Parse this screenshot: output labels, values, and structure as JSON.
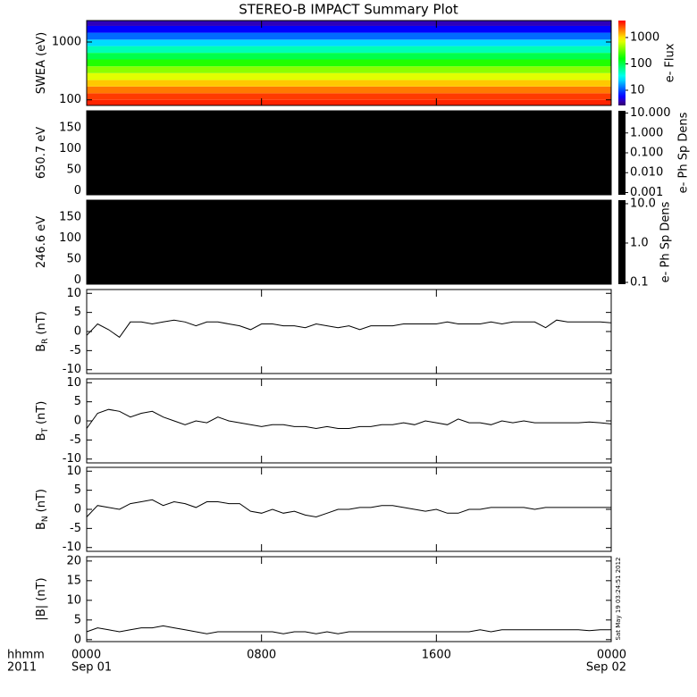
{
  "title": "STEREO-B IMPACT Summary Plot",
  "timestamp": "Sat May 19 03:24:51 2012",
  "x_axis": {
    "xlim": [
      0,
      24
    ],
    "xticks": [
      {
        "value": 0,
        "label": "0000"
      },
      {
        "value": 8,
        "label": "0800"
      },
      {
        "value": 16,
        "label": "1600"
      },
      {
        "value": 24,
        "label": "0000"
      }
    ],
    "xtick_dates": [
      "Sep 01",
      null,
      null,
      "Sep 02"
    ],
    "xlabel": [
      "hhmm",
      "2011"
    ]
  },
  "chart_data": [
    {
      "type": "spectrogram",
      "ylabel": "SWEA (eV)",
      "ylog": true,
      "ylim": [
        80,
        2350
      ],
      "yticks": [
        100,
        1000
      ],
      "ybins": [
        80,
        100,
        130,
        170,
        220,
        290,
        380,
        500,
        650,
        850,
        1100,
        1450,
        1900,
        2350
      ],
      "values": [
        3500,
        3000,
        2000,
        1200,
        700,
        400,
        200,
        100,
        50,
        25,
        12,
        6,
        4
      ],
      "clabel": "e- Flux",
      "clog": true,
      "clim": [
        2.65,
        4400
      ],
      "cticks": [
        10,
        100,
        1000
      ]
    },
    {
      "type": "pitch",
      "ylabel": "650.7 eV",
      "ylim": [
        -10,
        190
      ],
      "yticks": [
        0,
        50,
        100,
        150
      ],
      "color": "#000000",
      "clabel": "e- Ph Sp Dens",
      "clog": true,
      "clim": [
        0.00077,
        13
      ],
      "cticks": [
        {
          "value": 10,
          "label": "10.000"
        },
        {
          "value": 1,
          "label": "1.000"
        },
        {
          "value": 0.1,
          "label": "0.100"
        },
        {
          "value": 0.01,
          "label": "0.010"
        },
        {
          "value": 0.001,
          "label": "0.001"
        }
      ]
    },
    {
      "type": "pitch",
      "ylabel": "246.6 eV",
      "ylim": [
        -10,
        190
      ],
      "yticks": [
        0,
        50,
        100,
        150
      ],
      "color": "#000000",
      "clabel": "e- Ph Sp Dens",
      "clog": true,
      "clim": [
        0.09,
        12.3
      ],
      "cticks": [
        {
          "value": 10,
          "label": "10.0"
        },
        {
          "value": 1,
          "label": "1.0"
        },
        {
          "value": 0.1,
          "label": "0.1"
        }
      ]
    },
    {
      "type": "line",
      "ylabel": "B",
      "ylabel_sub": "R",
      "ylabel_unit": "(nT)",
      "ylim": [
        -11,
        11
      ],
      "yticks": [
        -10,
        -5,
        0,
        5,
        10
      ],
      "color": "#000000",
      "x": [
        0,
        0.5,
        1,
        1.5,
        2,
        2.5,
        3,
        3.5,
        4,
        4.5,
        5,
        5.5,
        6,
        6.5,
        7,
        7.5,
        8,
        8.5,
        9,
        9.5,
        10,
        10.5,
        11,
        11.5,
        12,
        12.5,
        13,
        13.5,
        14,
        14.5,
        15,
        15.5,
        16,
        16.5,
        17,
        17.5,
        18,
        18.5,
        19,
        19.5,
        20,
        20.5,
        21,
        21.5,
        22,
        22.5,
        23,
        23.5,
        24
      ],
      "values": [
        -1,
        2,
        0.5,
        -1.5,
        2.5,
        2.5,
        2,
        2.5,
        3,
        2.5,
        1.5,
        2.5,
        2.5,
        2,
        1.5,
        0.5,
        2,
        2,
        1.5,
        1.5,
        1,
        2,
        1.5,
        1,
        1.5,
        0.5,
        1.5,
        1.5,
        1.5,
        2,
        2,
        2,
        2,
        2.5,
        2,
        2,
        2,
        2.5,
        2,
        2.5,
        2.5,
        2.5,
        1,
        3,
        2.5,
        2.5,
        2.5,
        2.5,
        2.3
      ]
    },
    {
      "type": "line",
      "ylabel": "B",
      "ylabel_sub": "T",
      "ylabel_unit": "(nT)",
      "ylim": [
        -11,
        11
      ],
      "yticks": [
        -10,
        -5,
        0,
        5,
        10
      ],
      "color": "#000000",
      "x": [
        0,
        0.5,
        1,
        1.5,
        2,
        2.5,
        3,
        3.5,
        4,
        4.5,
        5,
        5.5,
        6,
        6.5,
        7,
        7.5,
        8,
        8.5,
        9,
        9.5,
        10,
        10.5,
        11,
        11.5,
        12,
        12.5,
        13,
        13.5,
        14,
        14.5,
        15,
        15.5,
        16,
        16.5,
        17,
        17.5,
        18,
        18.5,
        19,
        19.5,
        20,
        20.5,
        21,
        21.5,
        22,
        22.5,
        23,
        23.5,
        24
      ],
      "values": [
        -2,
        2,
        3,
        2.5,
        1,
        2,
        2.5,
        1,
        0,
        -1,
        0,
        -0.5,
        1,
        0,
        -0.5,
        -1,
        -1.5,
        -1,
        -1,
        -1.5,
        -1.5,
        -2,
        -1.5,
        -2,
        -2,
        -1.5,
        -1.5,
        -1,
        -1,
        -0.5,
        -1,
        0,
        -0.5,
        -1,
        0.5,
        -0.5,
        -0.5,
        -1,
        0,
        -0.5,
        0,
        -0.5,
        -0.5,
        -0.5,
        -0.5,
        -0.5,
        -0.3,
        -0.5,
        -0.8
      ]
    },
    {
      "type": "line",
      "ylabel": "B",
      "ylabel_sub": "N",
      "ylabel_unit": "(nT)",
      "ylim": [
        -11,
        11
      ],
      "yticks": [
        -10,
        -5,
        0,
        5,
        10
      ],
      "color": "#000000",
      "x": [
        0,
        0.5,
        1,
        1.5,
        2,
        2.5,
        3,
        3.5,
        4,
        4.5,
        5,
        5.5,
        6,
        6.5,
        7,
        7.5,
        8,
        8.5,
        9,
        9.5,
        10,
        10.5,
        11,
        11.5,
        12,
        12.5,
        13,
        13.5,
        14,
        14.5,
        15,
        15.5,
        16,
        16.5,
        17,
        17.5,
        18,
        18.5,
        19,
        19.5,
        20,
        20.5,
        21,
        21.5,
        22,
        22.5,
        23,
        23.5,
        24
      ],
      "values": [
        -2,
        1,
        0.5,
        0,
        1.5,
        2,
        2.5,
        1,
        2,
        1.5,
        0.5,
        2,
        2,
        1.5,
        1.5,
        -0.5,
        -1,
        0,
        -1,
        -0.5,
        -1.5,
        -2,
        -1,
        0,
        0,
        0.5,
        0.5,
        1,
        1,
        0.5,
        0,
        -0.5,
        0,
        -1,
        -1,
        0,
        0,
        0.5,
        0.5,
        0.5,
        0.5,
        0,
        0.5,
        0.5,
        0.5,
        0.5,
        0.5,
        0.5,
        0.5
      ]
    },
    {
      "type": "line",
      "ylabel": "|B| (nT)",
      "ylim": [
        -0.5,
        21.1
      ],
      "yticks": [
        0,
        5,
        10,
        15,
        20
      ],
      "color": "#000000",
      "x": [
        0,
        0.5,
        1,
        1.5,
        2,
        2.5,
        3,
        3.5,
        4,
        4.5,
        5,
        5.5,
        6,
        6.5,
        7,
        7.5,
        8,
        8.5,
        9,
        9.5,
        10,
        10.5,
        11,
        11.5,
        12,
        12.5,
        13,
        13.5,
        14,
        14.5,
        15,
        15.5,
        16,
        16.5,
        17,
        17.5,
        18,
        18.5,
        19,
        19.5,
        20,
        20.5,
        21,
        21.5,
        22,
        22.5,
        23,
        23.5,
        24
      ],
      "values": [
        2,
        3,
        2.5,
        2,
        2.5,
        3,
        3,
        3.5,
        3,
        2.5,
        2,
        1.5,
        2,
        2,
        2,
        2,
        2,
        2,
        1.5,
        2,
        2,
        1.5,
        2,
        1.5,
        2,
        2,
        2,
        2,
        2,
        2,
        2,
        2,
        2,
        2,
        2,
        2,
        2.5,
        2,
        2.5,
        2.5,
        2.5,
        2.5,
        2.5,
        2.5,
        2.5,
        2.5,
        2.3,
        2.5,
        2.5
      ]
    }
  ]
}
